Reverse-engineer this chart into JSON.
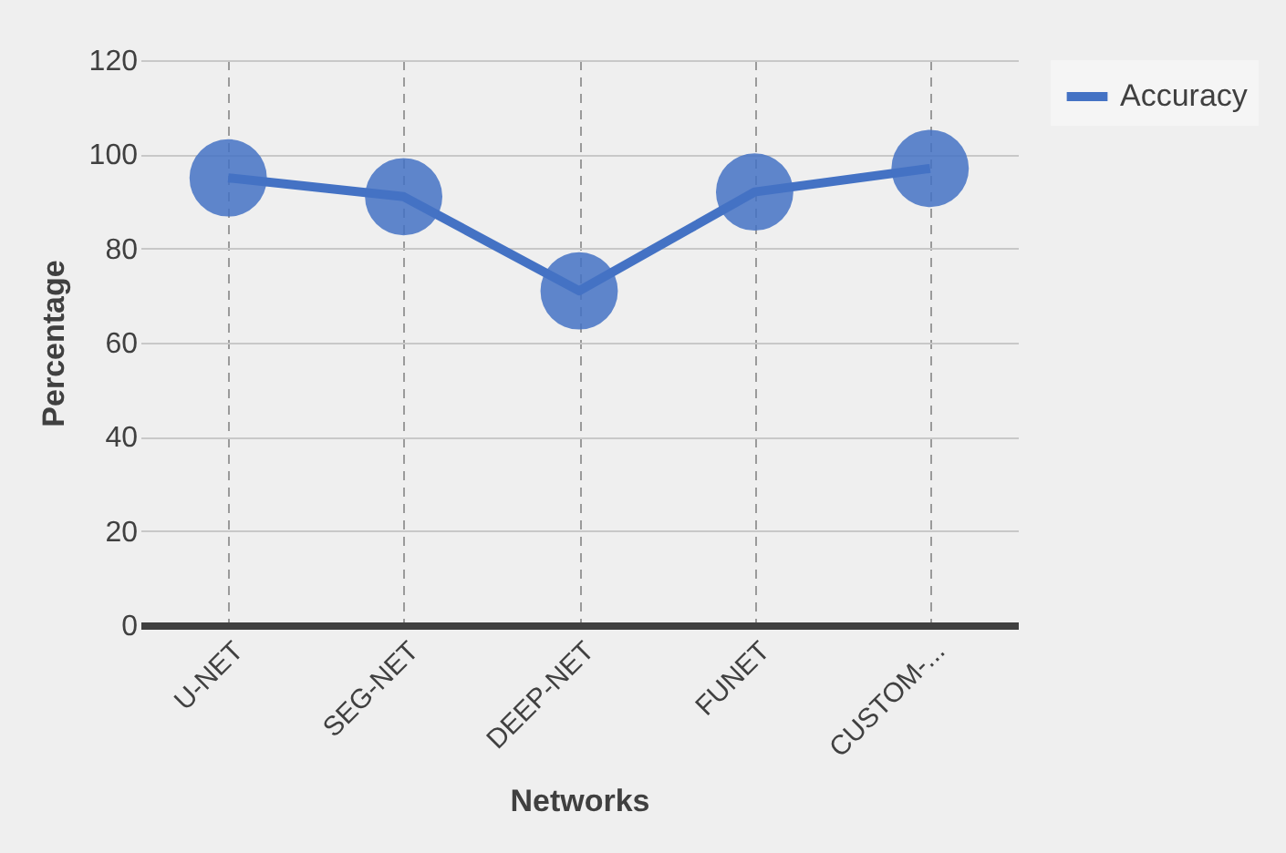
{
  "chart_data": {
    "type": "line",
    "xlabel": "Networks",
    "ylabel": "Percentage",
    "categories": [
      "U-NET",
      "SEG-NET",
      "DEEP-NET",
      "FUNET",
      "CUSTOM-..."
    ],
    "series": [
      {
        "name": "Accuracy",
        "color": "#4472c4",
        "values": [
          95,
          91,
          71,
          92,
          97
        ]
      }
    ],
    "ylim": [
      0,
      120
    ],
    "yticks": [
      0,
      20,
      40,
      60,
      80,
      100,
      120
    ],
    "grid": true,
    "legend": "right",
    "marker": "circle",
    "line_style": "solid"
  }
}
